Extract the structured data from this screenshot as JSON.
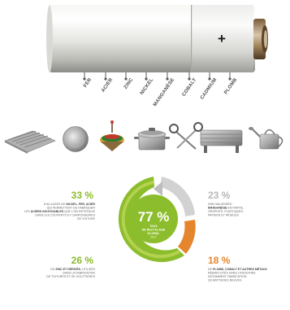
{
  "battery": {
    "plus_sign": "+",
    "metals": [
      "FER",
      "ACIER",
      "ZINC",
      "NICKEL",
      "MANGANÈSE",
      "COBALT",
      "CADMIUM",
      "PLOMB"
    ]
  },
  "products": {
    "items": [
      {
        "name": "corrugated-sheet-icon"
      },
      {
        "name": "metal-disc-icon"
      },
      {
        "name": "spinning-top-icon"
      },
      {
        "name": "cooking-pot-icon"
      },
      {
        "name": "scissors-icon"
      },
      {
        "name": "radiator-icon"
      },
      {
        "name": "watering-can-icon"
      }
    ]
  },
  "recycling": {
    "center": {
      "value": "77 %",
      "label_line1": "TAUX",
      "label_line2": "DE RECYCLAGE",
      "label_line3": "GLOBAL",
      "label_line4": "2017"
    },
    "top_left": {
      "value": "33 %",
      "line1_pre": "D'ALLIAGES DE ",
      "line1_strong": "NICKEL, FER, ACIER",
      "line2": "QUI PERMETTENT DE FABRIQUER",
      "line3_pre": "LES ",
      "line3_strong": "ACIERS INOXYDABLES",
      "line3_post": " QUE L'ON RETROUVE",
      "line4": "DANS LES COUVERTS ET CARROSSERIES",
      "line5": "DE VOITURE"
    },
    "bottom_left": {
      "value": "26 %",
      "line1_pre": "DE ",
      "line1_strong": "ZINC ET DÉRIVÉS",
      "line1_post": ", UTILISÉS",
      "line2": "DANS LA FABRICATION",
      "line3": "DE TOITURES ET DE GOUTTIÈRES"
    },
    "top_right": {
      "value": "23 %",
      "line1": "NON VALORISÉS :",
      "line2_strong": "MANGANÈSE",
      "line2_post": " EN PARTIE,",
      "line3": "GRAPHITE, PLASTIQUES,",
      "line4": "PAPIERS ET RÉSIDUS"
    },
    "bottom_right": {
      "value": "18 %",
      "line1_pre": "DE ",
      "line1_strong": "PLOMB, COBALT ET AUTRES MÉTAUX",
      "line2": "RÉEMPLOYÉS DANS L'INDUSTRIE",
      "line3": "NOTAMMENT FABRICATION",
      "line4": "DE BATTERIES NEUVES"
    },
    "colors": {
      "green": "#8cbd2c",
      "green_light": "#b4d24f",
      "orange": "#e5862d",
      "gray": "#b8b8b8",
      "gray_light": "#d5d5d5"
    }
  }
}
